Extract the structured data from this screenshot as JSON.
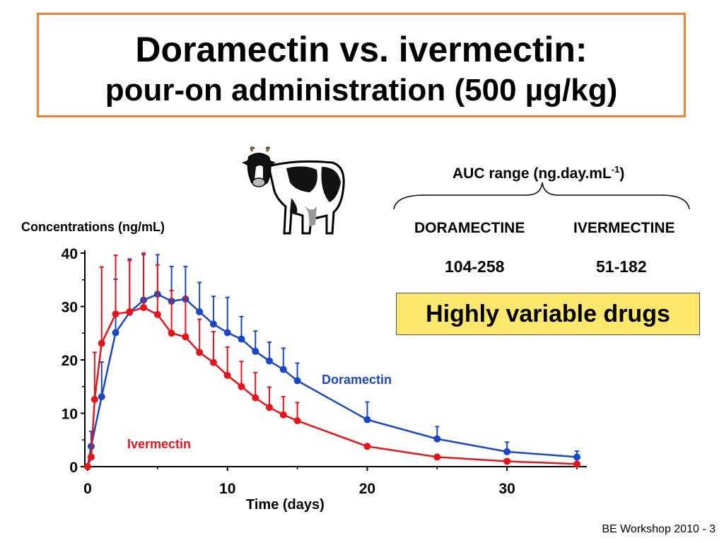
{
  "title": {
    "line1": "Doramectin vs. ivermectin:",
    "line2": "pour-on administration (500 µg/kg)"
  },
  "auc": {
    "label": "AUC range (ng.day.mL",
    "superscript": "-1",
    "close": ")",
    "drugs": [
      {
        "name": "DORAMECTINE",
        "range": "104-258"
      },
      {
        "name": "IVERMECTINE",
        "range": "51-182"
      }
    ]
  },
  "highlight": "Highly variable drugs",
  "footer": "BE Workshop 2010 - 3",
  "chart_data": {
    "type": "line",
    "ylabel": "Concentrations (ng/mL)",
    "xlabel": "Time (days)",
    "xlim": [
      0,
      35
    ],
    "ylim": [
      0,
      40
    ],
    "xticks": [
      0,
      10,
      20,
      30
    ],
    "yticks": [
      0,
      10,
      20,
      30,
      40
    ],
    "grid": false,
    "series": [
      {
        "name": "Doramectin",
        "color": "#1a47c8",
        "x": [
          0,
          0.25,
          1,
          2,
          3,
          4,
          5,
          6,
          7,
          8,
          9,
          10,
          11,
          12,
          13,
          14,
          15,
          20,
          25,
          30,
          35
        ],
        "y": [
          0,
          3.8,
          13.1,
          25.1,
          28.9,
          31.2,
          32.3,
          31.0,
          31.4,
          29.0,
          26.7,
          25.1,
          23.9,
          21.6,
          19.8,
          18.2,
          16.1,
          8.8,
          5.2,
          2.8,
          1.8
        ],
        "err": [
          0,
          2.8,
          6.5,
          10.0,
          10.0,
          8.5,
          7.4,
          6.5,
          6.1,
          5.5,
          5.2,
          6.6,
          4.2,
          3.8,
          3.5,
          4.0,
          3.3,
          3.3,
          2.3,
          1.8,
          1.1
        ]
      },
      {
        "name": "Ivermectin",
        "color": "#e8141c",
        "x": [
          0,
          0.25,
          0.5,
          1,
          2,
          3,
          4,
          5,
          6,
          7,
          8,
          9,
          10,
          11,
          12,
          13,
          14,
          15,
          20,
          25,
          30,
          35
        ],
        "y": [
          0,
          1.8,
          12.6,
          23.1,
          28.6,
          29.0,
          29.8,
          28.5,
          25.0,
          24.3,
          21.4,
          19.5,
          17.1,
          15.0,
          12.9,
          11.1,
          9.7,
          8.6,
          3.8,
          1.8,
          1.0,
          0.5
        ],
        "err": [
          0,
          0,
          8.8,
          14.3,
          11.0,
          9.6,
          10.2,
          9.3,
          8.0,
          7.5,
          6.2,
          5.8,
          5.3,
          4.7,
          4.7,
          3.8,
          3.4,
          3.4,
          0,
          0,
          0,
          0
        ]
      }
    ]
  }
}
